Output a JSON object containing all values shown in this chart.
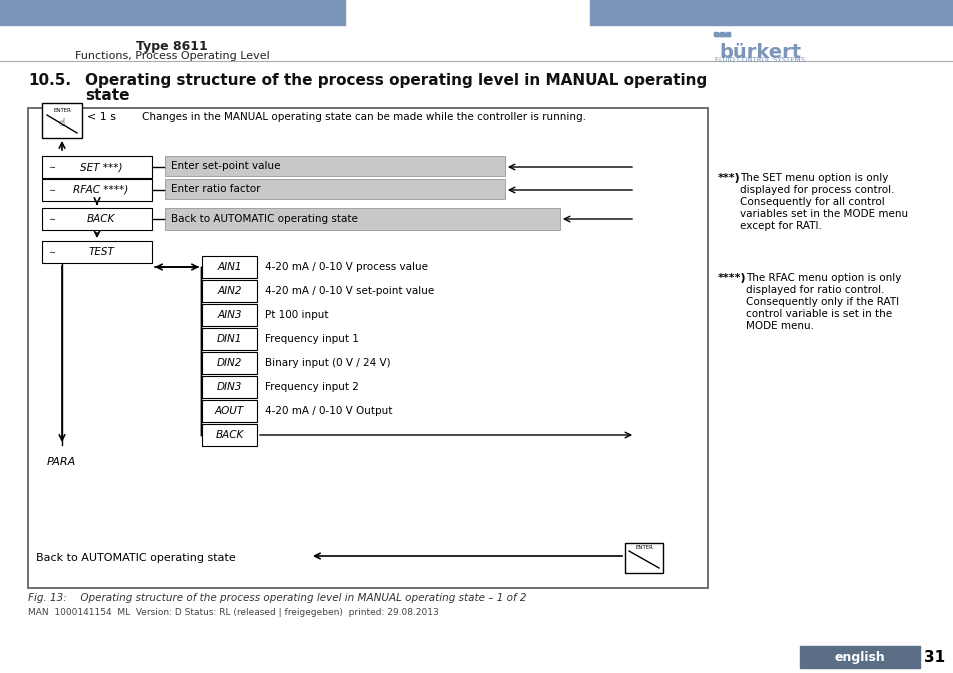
{
  "bg_color": "#ffffff",
  "header_bar_color": "#7b96b8",
  "header_title": "Type 8611",
  "header_subtitle": "Functions, Process Operating Level",
  "section_title": "10.5. Operating structure of the process operating level in MANUAL operating\n     state",
  "diagram_bg": "#ffffff",
  "diagram_border": "#000000",
  "gray_box_color": "#cccccc",
  "white_box_color": "#ffffff",
  "note_star3": "***) The SET menu option is only\n      displayed for process control.\n      Consequently for all control\n      variables set in the MODE menu\n      except for RATI.",
  "note_star4": "****) The RFAC menu option is only\n       displayed for ratio control.\n       Consequently only if the RATI\n       control variable is set in the\n       MODE menu.",
  "footer_fig": "Fig. 13:  Operating structure of the process operating level in MANUAL operating state – 1 of 2",
  "footer_man": "MAN  1000141154  ML  Version: D Status: RL (released | freigegeben)  printed: 29.08.2013",
  "footer_lang": "english",
  "footer_page": "31",
  "footer_lang_bg": "#5a6e85"
}
